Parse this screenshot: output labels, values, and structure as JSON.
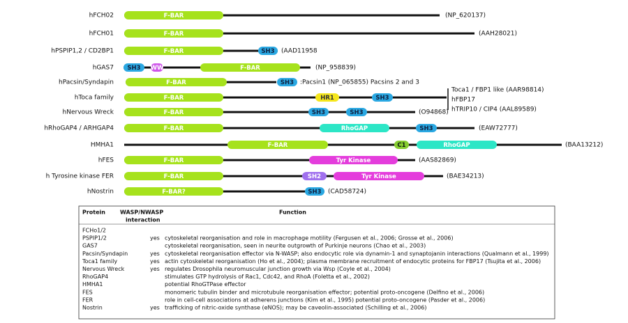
{
  "proteins": [
    {
      "name": "hFCH02",
      "domains": [
        "F-BAR"
      ],
      "accession": "(NP_620137)"
    },
    {
      "name": "hFCH01",
      "domains": [
        "F-BAR"
      ],
      "accession": "(AAH28021)"
    },
    {
      "name": "hPSPIP1,2 / CD2BP1",
      "domains": [
        "F-BAR",
        "SH3"
      ],
      "accession": "(AAD11958"
    },
    {
      "name": "hGAS7",
      "domains": [
        "SH3",
        "WW",
        "F-BAR"
      ],
      "accession": "(NP_958839)"
    },
    {
      "name": "hPacsin/Syndapin",
      "domains": [
        "F-BAR",
        "SH3"
      ],
      "accession": ":Pacsin1 (NP_065855) Pacsins 2 and 3"
    },
    {
      "name": "hToca family",
      "domains": [
        "F-BAR",
        "HR1",
        "SH3"
      ],
      "annotations": [
        "Toca1 / FBP1 like (AAR98814)",
        "hFBP17",
        "hTRIP10 / CIP4 (AAL89589)"
      ]
    },
    {
      "name": "hNervous Wreck",
      "domains": [
        "F-BAR",
        "SH3",
        "SH3"
      ],
      "accession": "(O94868)"
    },
    {
      "name": "hRhoGAP4 / ARHGAP4",
      "domains": [
        "F-BAR",
        "RhoGAP",
        "SH3"
      ],
      "accession": "(EAW72777)"
    },
    {
      "name": "HMHA1",
      "domains": [
        "F-BAR",
        "C1",
        "RhoGAP"
      ],
      "accession": "(BAA13212)"
    },
    {
      "name": "hFES",
      "domains": [
        "F-BAR",
        "Tyr Kinase"
      ],
      "accession": "(AAS82869)"
    },
    {
      "name": "h Tyrosine kinase FER",
      "domains": [
        "F-BAR",
        "SH2",
        "Tyr Kinase"
      ],
      "accession": "(BAE34213)"
    },
    {
      "name": "hNostrin",
      "domains": [
        "F-BAR?",
        "SH3"
      ],
      "accession": "(CAD58724)"
    }
  ],
  "table": {
    "headers": [
      "Protein",
      "WASP/NWASP",
      "interaction",
      "Function"
    ],
    "rows": [
      {
        "protein": "FCHo1/2"
      },
      {
        "protein": "PSPIP1/2",
        "interaction": "yes",
        "function": "cytoskeletal reorganisation and role in macrophage motility (Fergusen et al., 2006; Grosse et al., 2006)"
      },
      {
        "protein": "GAS7",
        "function": "cytoskeletal reorganisation, seen in neurite outgrowth of Purkinje neurons (Chao et al., 2003)"
      },
      {
        "protein": "Pacsin/Syndapin",
        "interaction": "yes",
        "function": "cytoskeletal reorganisation effector via N-WASP; also endocytic role via dynamin-1 and synaptojanin interactions (Qualmann et al., 1999)"
      },
      {
        "protein": "Toca1 family",
        "interaction": "yes",
        "function": "actin cytoskeletal reorganisation (Ho et al., 2004); plasma membrane recruitment of endocytic proteins for FBP17 (Tsujita et al., 2006)"
      },
      {
        "protein": "Nervous Wreck",
        "interaction": "yes",
        "function": "regulates Drosophila neuromuscular junction growth via Wsp (Coyle et al., 2004)"
      },
      {
        "protein": "RhoGAP4",
        "function": "stimulates GTP hydrolysis of Rac1, Cdc42, and RhoA (Foletta et al., 2002)"
      },
      {
        "protein": "HMHA1",
        "function": "potential RhoGTPase effector"
      },
      {
        "protein": "FES",
        "function": "monomeric tubulin binder and microtubule reorganisation effector; potential proto-oncogene (Delfino et al., 2006)"
      },
      {
        "protein": "FER",
        "function": "role in cell-cell associations at adherens junctions (Kim et al., 1995) potential proto-oncogene (Pasder et al., 2006)"
      },
      {
        "protein": "Nostrin",
        "interaction": "yes",
        "function": "trafficking of nitric-oxide synthase (eNOS); may be caveolin-associated (Schilling et al., 2006)"
      }
    ]
  }
}
